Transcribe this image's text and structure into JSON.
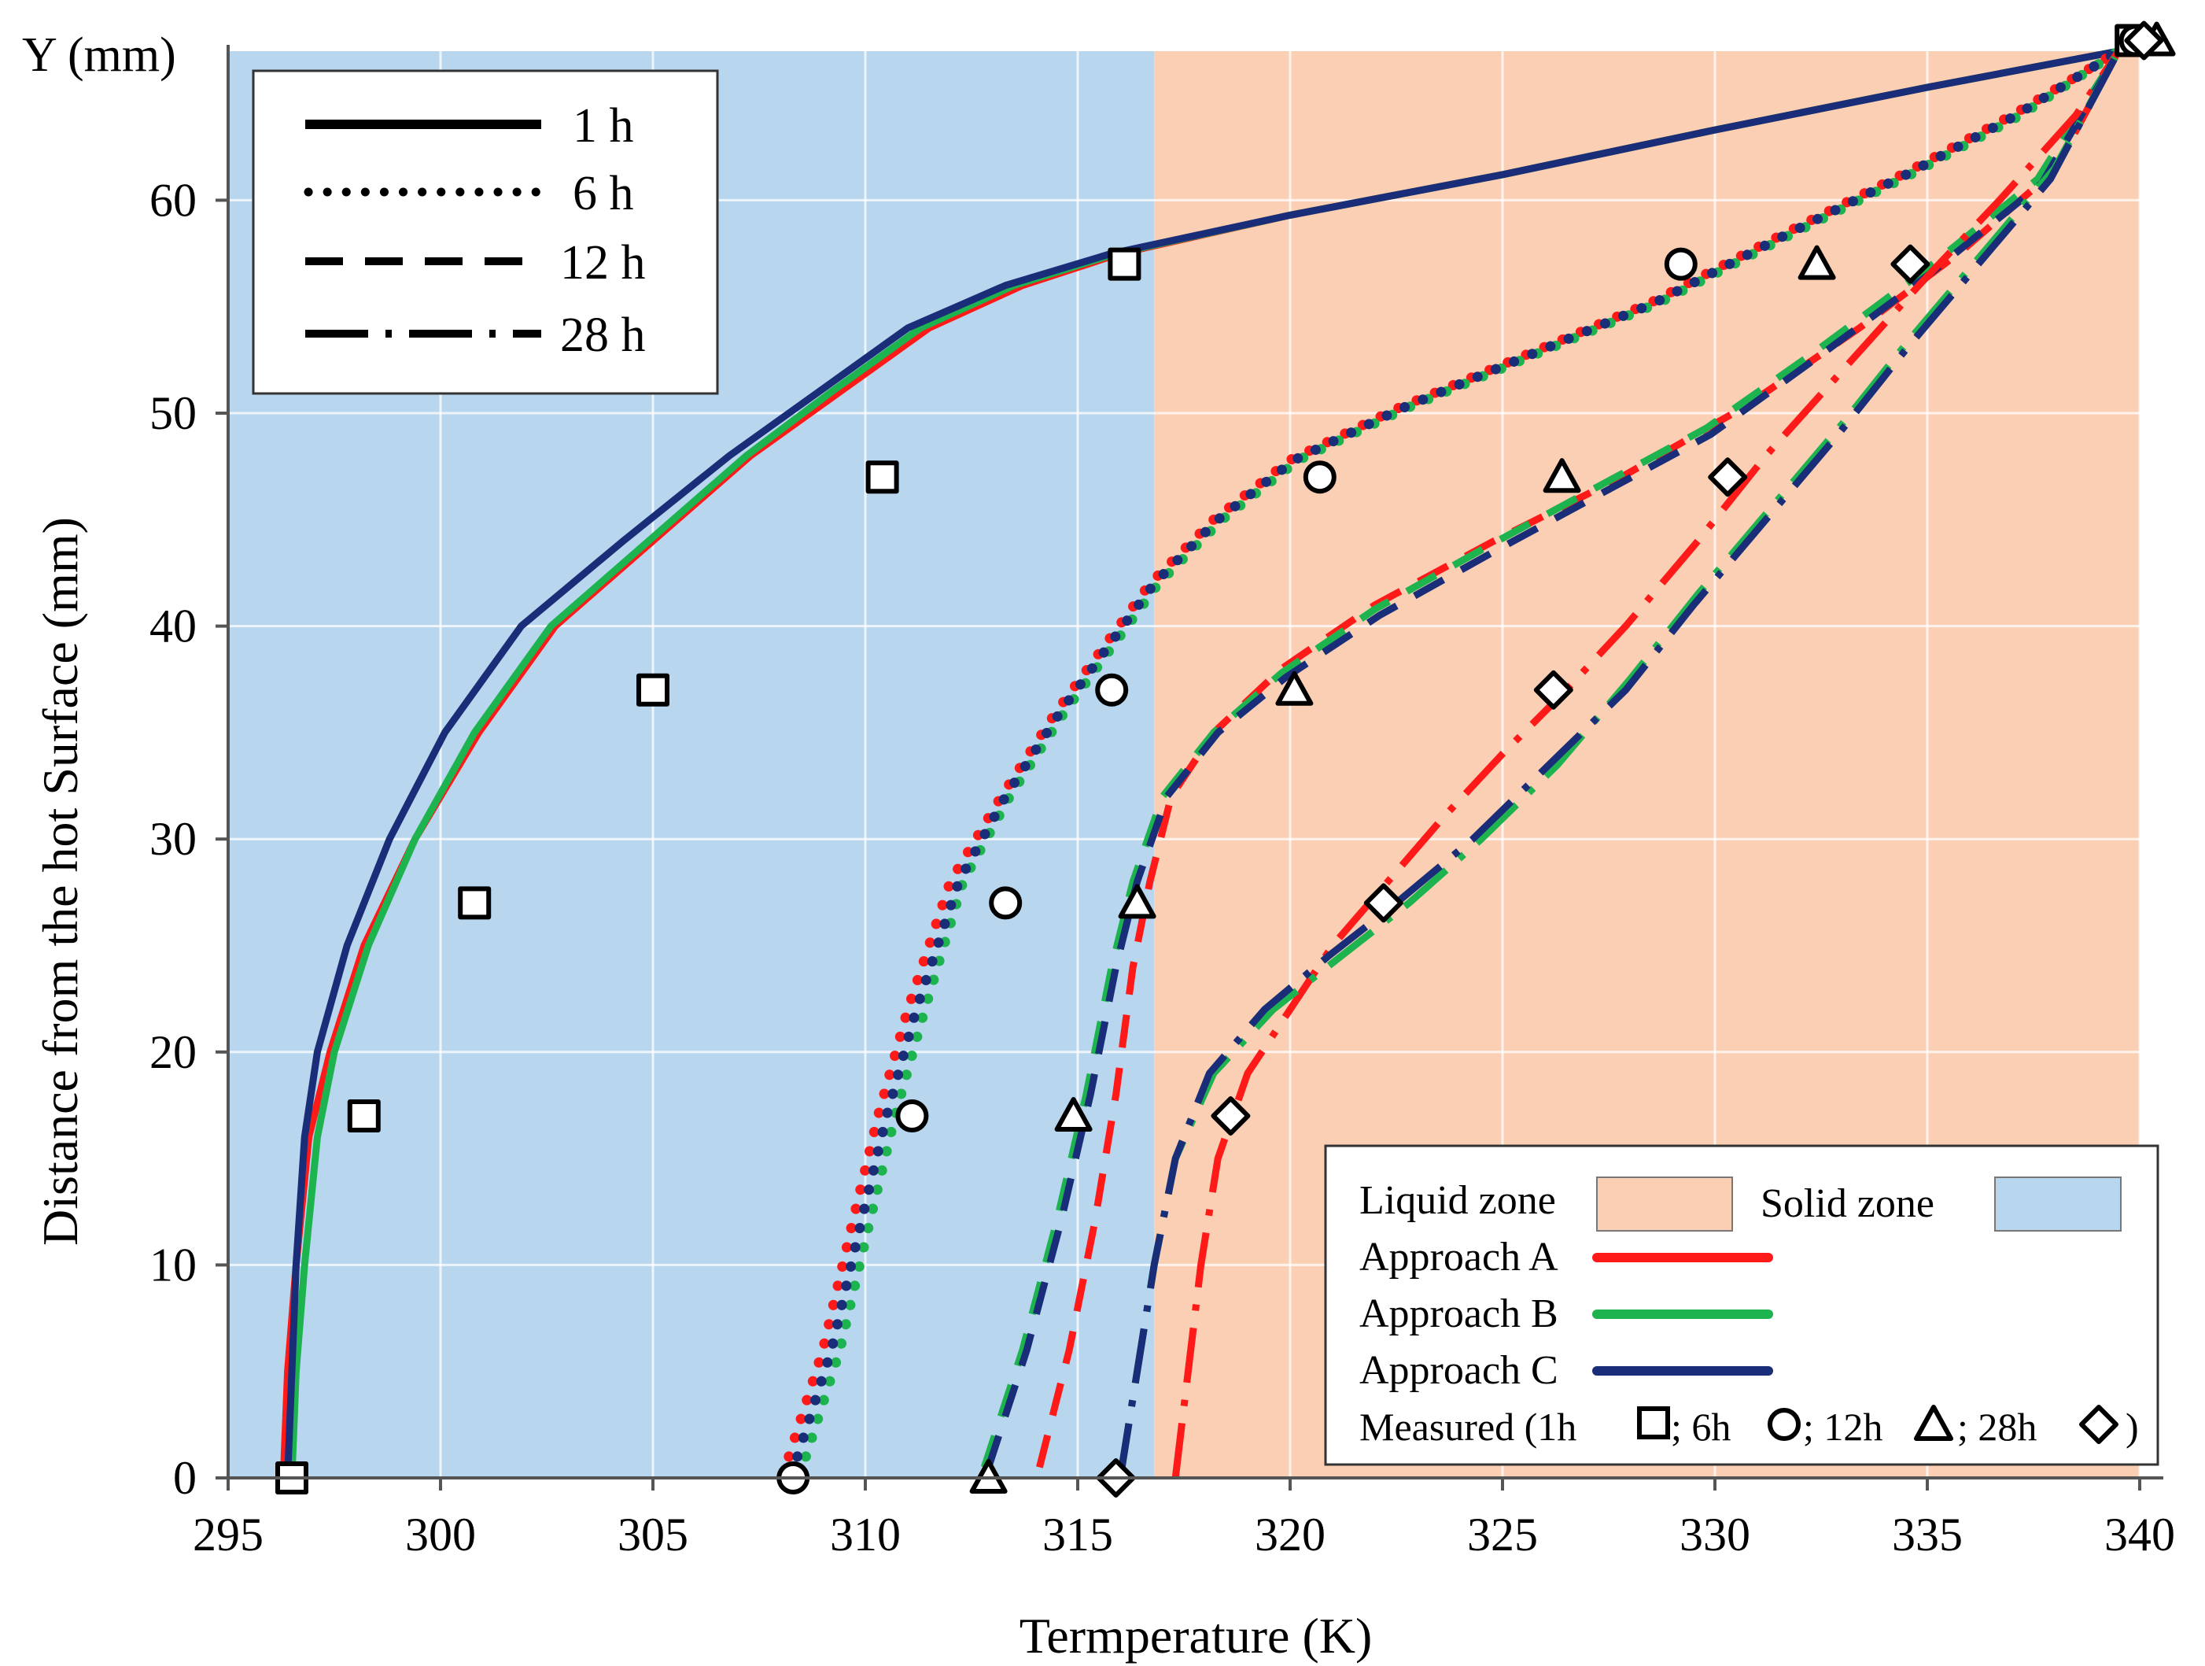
{
  "chart_data": {
    "type": "line",
    "xlabel": "Termperature (K)",
    "ylabel": "Distance from the hot Surface (mm)",
    "y_axis_title": "Y (mm)",
    "xlim": [
      295,
      340
    ],
    "ylim": [
      0,
      67
    ],
    "x_ticks": [
      295,
      300,
      305,
      310,
      315,
      320,
      325,
      330,
      335,
      340
    ],
    "y_ticks": [
      0,
      10,
      20,
      30,
      40,
      50,
      60
    ],
    "grid": true,
    "zones": [
      {
        "name": "Solid zone",
        "x_from": 295,
        "x_to": 316.8,
        "color": "#b8d6ee"
      },
      {
        "name": "Liquid zone",
        "x_from": 316.8,
        "x_to": 340,
        "color": "#fbcfb3"
      }
    ],
    "approaches": [
      {
        "name": "Approach A",
        "color": "#ff1a1a"
      },
      {
        "name": "Approach B",
        "color": "#1db34f"
      },
      {
        "name": "Approach C",
        "color": "#1a2d78"
      }
    ],
    "times": [
      {
        "label": "1 h",
        "style": "solid"
      },
      {
        "label": "6 h",
        "style": "dotted"
      },
      {
        "label": "12 h",
        "style": "dashed"
      },
      {
        "label": "28 h",
        "style": "dashdot"
      }
    ],
    "series": [
      {
        "time": "1 h",
        "approach": "Approach A",
        "points": [
          [
            296.3,
            0
          ],
          [
            296.4,
            5
          ],
          [
            296.6,
            10
          ],
          [
            296.9,
            16
          ],
          [
            297.4,
            20
          ],
          [
            298.2,
            25
          ],
          [
            299.4,
            30
          ],
          [
            300.9,
            35
          ],
          [
            302.7,
            40
          ],
          [
            305.0,
            44
          ],
          [
            307.3,
            48
          ],
          [
            309.4,
            51
          ],
          [
            311.5,
            54
          ],
          [
            313.7,
            56
          ],
          [
            316.0,
            57.5
          ],
          [
            320.0,
            59.3
          ],
          [
            325.0,
            61.2
          ],
          [
            330.0,
            63.3
          ],
          [
            335.0,
            65.3
          ],
          [
            339.5,
            67
          ]
        ]
      },
      {
        "time": "1 h",
        "approach": "Approach B",
        "points": [
          [
            296.5,
            0
          ],
          [
            296.6,
            5
          ],
          [
            296.8,
            10
          ],
          [
            297.1,
            16
          ],
          [
            297.5,
            20
          ],
          [
            298.3,
            25
          ],
          [
            299.4,
            30
          ],
          [
            300.8,
            35
          ],
          [
            302.6,
            40
          ],
          [
            304.9,
            44
          ],
          [
            307.2,
            48
          ],
          [
            309.2,
            51
          ],
          [
            311.3,
            54
          ],
          [
            313.5,
            56
          ],
          [
            315.9,
            57.5
          ],
          [
            320.0,
            59.3
          ],
          [
            325.0,
            61.2
          ],
          [
            330.0,
            63.3
          ],
          [
            335.0,
            65.3
          ],
          [
            339.5,
            67
          ]
        ]
      },
      {
        "time": "1 h",
        "approach": "Approach C",
        "points": [
          [
            296.4,
            0
          ],
          [
            296.5,
            5
          ],
          [
            296.6,
            10
          ],
          [
            296.8,
            16
          ],
          [
            297.1,
            20
          ],
          [
            297.8,
            25
          ],
          [
            298.8,
            30
          ],
          [
            300.1,
            35
          ],
          [
            301.9,
            40
          ],
          [
            304.3,
            44
          ],
          [
            306.8,
            48
          ],
          [
            308.9,
            51
          ],
          [
            311.0,
            54
          ],
          [
            313.3,
            56
          ],
          [
            315.8,
            57.5
          ],
          [
            320.0,
            59.3
          ],
          [
            325.0,
            61.2
          ],
          [
            330.0,
            63.3
          ],
          [
            335.0,
            65.3
          ],
          [
            339.5,
            67
          ]
        ]
      },
      {
        "time": "6 h",
        "approach": "Approach A",
        "points": [
          [
            308.2,
            1
          ],
          [
            309.0,
            6
          ],
          [
            309.7,
            12
          ],
          [
            310.3,
            17
          ],
          [
            311.0,
            22
          ],
          [
            312.0,
            28
          ],
          [
            313.2,
            32
          ],
          [
            314.5,
            36
          ],
          [
            315.6,
            39
          ],
          [
            316.7,
            42
          ],
          [
            318.2,
            45
          ],
          [
            320.0,
            47.8
          ],
          [
            322.5,
            50.2
          ],
          [
            325.5,
            52.7
          ],
          [
            328.5,
            55.2
          ],
          [
            331.5,
            58.3
          ],
          [
            334.5,
            61.3
          ],
          [
            337.0,
            64.0
          ],
          [
            339.5,
            67
          ]
        ]
      },
      {
        "time": "6 h",
        "approach": "Approach B",
        "points": [
          [
            308.6,
            1
          ],
          [
            309.4,
            6
          ],
          [
            310.1,
            12
          ],
          [
            310.7,
            17
          ],
          [
            311.4,
            22
          ],
          [
            312.3,
            28
          ],
          [
            313.4,
            32
          ],
          [
            314.7,
            36
          ],
          [
            315.8,
            39
          ],
          [
            316.9,
            42
          ],
          [
            318.4,
            45
          ],
          [
            320.2,
            47.8
          ],
          [
            322.7,
            50.2
          ],
          [
            325.7,
            52.7
          ],
          [
            328.7,
            55.2
          ],
          [
            331.7,
            58.3
          ],
          [
            334.7,
            61.3
          ],
          [
            337.2,
            64.0
          ],
          [
            339.5,
            67
          ]
        ]
      },
      {
        "time": "6 h",
        "approach": "Approach C",
        "points": [
          [
            308.4,
            1
          ],
          [
            309.2,
            6
          ],
          [
            309.9,
            12
          ],
          [
            310.5,
            17
          ],
          [
            311.2,
            22
          ],
          [
            312.2,
            28
          ],
          [
            313.3,
            32
          ],
          [
            314.6,
            36
          ],
          [
            315.7,
            39
          ],
          [
            316.8,
            42
          ],
          [
            318.3,
            45
          ],
          [
            320.1,
            47.8
          ],
          [
            322.6,
            50.2
          ],
          [
            325.6,
            52.7
          ],
          [
            328.6,
            55.2
          ],
          [
            331.6,
            58.3
          ],
          [
            334.6,
            61.3
          ],
          [
            337.1,
            64.0
          ],
          [
            339.5,
            67
          ]
        ]
      },
      {
        "time": "12 h",
        "approach": "Approach A",
        "points": [
          [
            314.1,
            0.5
          ],
          [
            314.8,
            6
          ],
          [
            315.4,
            12
          ],
          [
            315.9,
            18
          ],
          [
            316.3,
            24
          ],
          [
            316.7,
            28
          ],
          [
            317.2,
            32
          ],
          [
            318.2,
            35
          ],
          [
            319.8,
            38
          ],
          [
            322.0,
            41
          ],
          [
            324.8,
            44
          ],
          [
            327.8,
            47
          ],
          [
            330.7,
            50.3
          ],
          [
            333.4,
            54.0
          ],
          [
            335.8,
            57.6
          ],
          [
            338.0,
            61.4
          ],
          [
            339.5,
            67
          ]
        ]
      },
      {
        "time": "12 h",
        "approach": "Approach B",
        "points": [
          [
            312.8,
            0.5
          ],
          [
            313.7,
            6
          ],
          [
            314.5,
            12
          ],
          [
            315.2,
            18
          ],
          [
            315.8,
            24
          ],
          [
            316.3,
            28
          ],
          [
            317.0,
            32
          ],
          [
            318.2,
            35
          ],
          [
            319.8,
            37.8
          ],
          [
            322.0,
            40.8
          ],
          [
            324.7,
            43.8
          ],
          [
            327.2,
            46.5
          ],
          [
            329.8,
            49.3
          ],
          [
            332.3,
            52.8
          ],
          [
            335.0,
            56.8
          ],
          [
            337.6,
            61.0
          ],
          [
            339.5,
            67
          ]
        ]
      },
      {
        "time": "12 h",
        "approach": "Approach C",
        "points": [
          [
            312.9,
            0.5
          ],
          [
            313.8,
            6
          ],
          [
            314.6,
            12
          ],
          [
            315.3,
            18
          ],
          [
            315.9,
            24
          ],
          [
            316.4,
            28
          ],
          [
            317.1,
            32
          ],
          [
            318.3,
            35
          ],
          [
            319.9,
            37.6
          ],
          [
            322.1,
            40.5
          ],
          [
            324.8,
            43.5
          ],
          [
            327.3,
            46.2
          ],
          [
            329.9,
            49.0
          ],
          [
            332.4,
            52.6
          ],
          [
            335.1,
            56.6
          ],
          [
            337.7,
            60.8
          ],
          [
            339.5,
            67
          ]
        ]
      },
      {
        "time": "28 h",
        "approach": "Approach A",
        "points": [
          [
            317.3,
            0
          ],
          [
            317.6,
            5
          ],
          [
            317.9,
            10
          ],
          [
            318.3,
            15
          ],
          [
            319.0,
            19
          ],
          [
            320.0,
            22
          ],
          [
            321.0,
            25
          ],
          [
            322.3,
            28
          ],
          [
            323.6,
            31
          ],
          [
            325.0,
            34
          ],
          [
            326.5,
            37
          ],
          [
            327.9,
            40
          ],
          [
            329.6,
            44
          ],
          [
            331.2,
            48
          ],
          [
            333.0,
            52
          ],
          [
            334.8,
            56
          ],
          [
            336.7,
            60
          ],
          [
            338.5,
            64
          ],
          [
            339.5,
            67
          ]
        ]
      },
      {
        "time": "28 h",
        "approach": "Approach B",
        "points": [
          [
            316.0,
            0
          ],
          [
            316.4,
            5
          ],
          [
            316.8,
            10
          ],
          [
            317.3,
            15
          ],
          [
            318.2,
            19
          ],
          [
            319.6,
            22
          ],
          [
            321.2,
            24.5
          ],
          [
            322.8,
            27
          ],
          [
            324.5,
            30
          ],
          [
            326.3,
            33.5
          ],
          [
            328.0,
            37.5
          ],
          [
            329.6,
            41.5
          ],
          [
            331.3,
            45.5
          ],
          [
            333.0,
            49.5
          ],
          [
            334.6,
            53.5
          ],
          [
            336.3,
            57.5
          ],
          [
            338.0,
            61.5
          ],
          [
            339.5,
            67
          ]
        ]
      },
      {
        "time": "28 h",
        "approach": "Approach C",
        "points": [
          [
            316.0,
            0
          ],
          [
            316.4,
            5
          ],
          [
            316.8,
            10
          ],
          [
            317.3,
            15
          ],
          [
            318.1,
            19
          ],
          [
            319.4,
            22
          ],
          [
            320.9,
            24.5
          ],
          [
            322.5,
            27
          ],
          [
            324.3,
            30
          ],
          [
            326.1,
            33.5
          ],
          [
            327.9,
            37
          ],
          [
            329.5,
            41
          ],
          [
            331.2,
            45
          ],
          [
            332.9,
            49
          ],
          [
            334.5,
            53
          ],
          [
            336.2,
            57
          ],
          [
            337.9,
            61
          ],
          [
            339.5,
            67
          ]
        ]
      }
    ],
    "measured": [
      {
        "time": "1h",
        "marker": "square",
        "points": [
          [
            296.5,
            0
          ],
          [
            298.2,
            17
          ],
          [
            300.8,
            27
          ],
          [
            305.0,
            37
          ],
          [
            310.4,
            47
          ],
          [
            316.1,
            57
          ],
          [
            339.8,
            67.5
          ]
        ]
      },
      {
        "time": "6h",
        "marker": "circle",
        "points": [
          [
            308.3,
            0
          ],
          [
            311.1,
            17
          ],
          [
            313.3,
            27
          ],
          [
            315.8,
            37
          ],
          [
            320.7,
            47
          ],
          [
            329.2,
            57
          ],
          [
            339.9,
            67.5
          ]
        ]
      },
      {
        "time": "12h",
        "marker": "triangle",
        "points": [
          [
            312.9,
            0
          ],
          [
            314.9,
            17
          ],
          [
            316.4,
            27
          ],
          [
            320.1,
            37
          ],
          [
            326.4,
            47
          ],
          [
            332.4,
            57
          ],
          [
            340.4,
            67.5
          ]
        ]
      },
      {
        "time": "28h",
        "marker": "diamond",
        "points": [
          [
            315.9,
            0
          ],
          [
            318.6,
            17
          ],
          [
            322.2,
            27
          ],
          [
            326.2,
            37
          ],
          [
            330.3,
            47
          ],
          [
            334.6,
            57
          ],
          [
            340.1,
            67.5
          ]
        ]
      }
    ],
    "legend_lines": {
      "position": "top-left",
      "entries": [
        "1 h",
        "6 h",
        "12 h",
        "28 h"
      ]
    },
    "legend_zones": {
      "position": "bottom-right",
      "liquid_label": "Liquid zone",
      "solid_label": "Solid zone",
      "approach_labels": [
        "Approach A",
        "Approach B",
        "Approach C"
      ],
      "measured_prefix": "Measured (1h",
      "measured_6h": "; 6h",
      "measured_12h": "; 12h",
      "measured_28h": "; 28h",
      "measured_suffix": ")"
    }
  }
}
